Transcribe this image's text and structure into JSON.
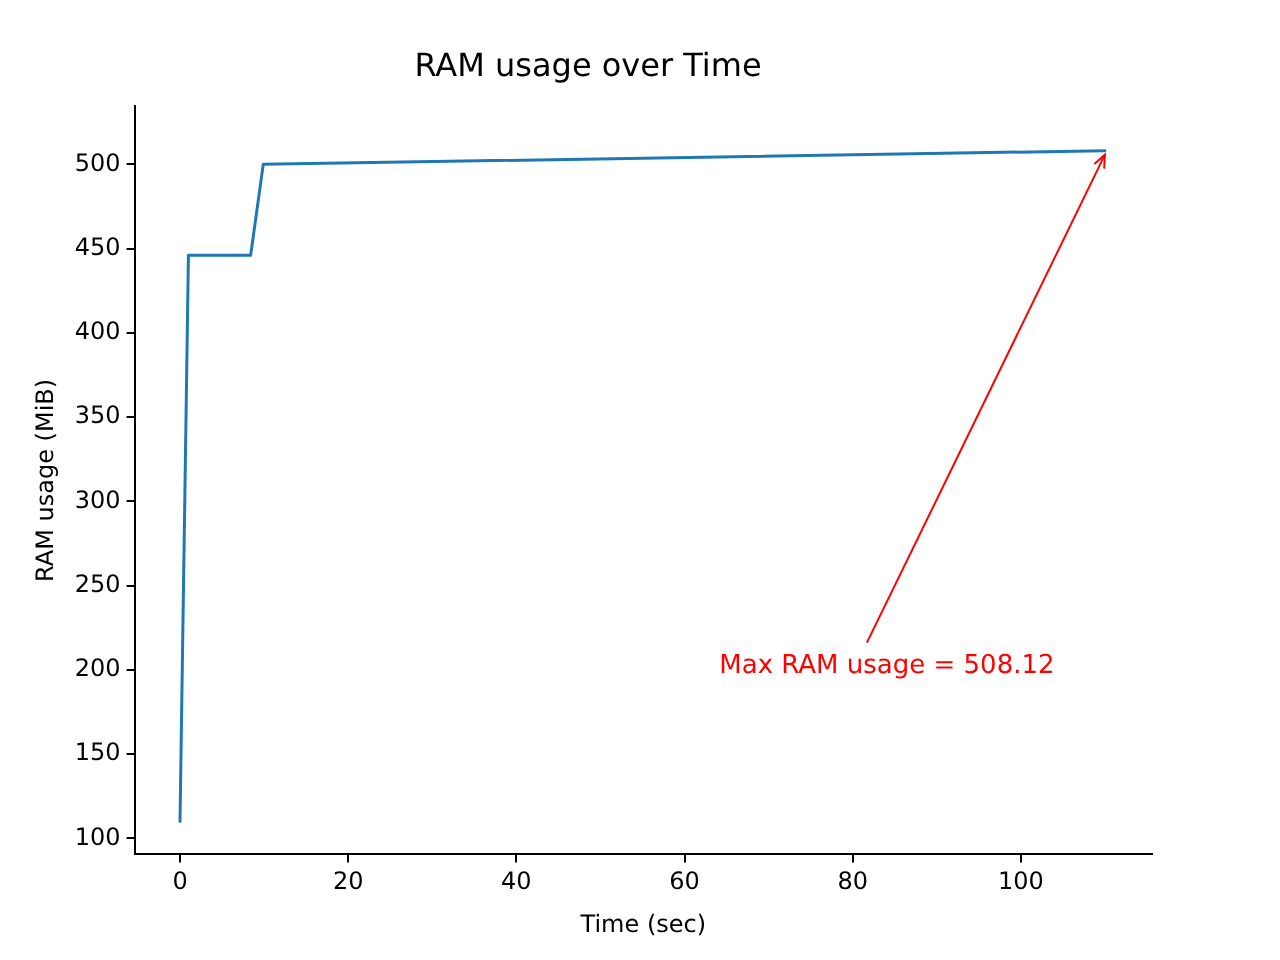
{
  "chart_data": {
    "type": "line",
    "title": "RAM usage over Time",
    "xlabel": "Time (sec)",
    "ylabel": "RAM usage (MiB)",
    "x": [
      0,
      1,
      8.4,
      9.9,
      110
    ],
    "series": [
      {
        "color": "#1f77b4",
        "values": [
          110,
          446,
          446,
          500,
          508.12
        ]
      }
    ],
    "xlim": [
      -5.4,
      115.6
    ],
    "ylim": [
      90.5,
      534.4
    ],
    "xticks": [
      0,
      20,
      40,
      60,
      80,
      100
    ],
    "yticks": [
      100,
      150,
      200,
      250,
      300,
      350,
      400,
      450,
      500
    ],
    "annotations": [
      {
        "text": "Max RAM usage = 508.12",
        "x": 110,
        "y": 508.12
      }
    ],
    "grid": false,
    "legend": false,
    "marker": "none",
    "line_style": "solid"
  }
}
